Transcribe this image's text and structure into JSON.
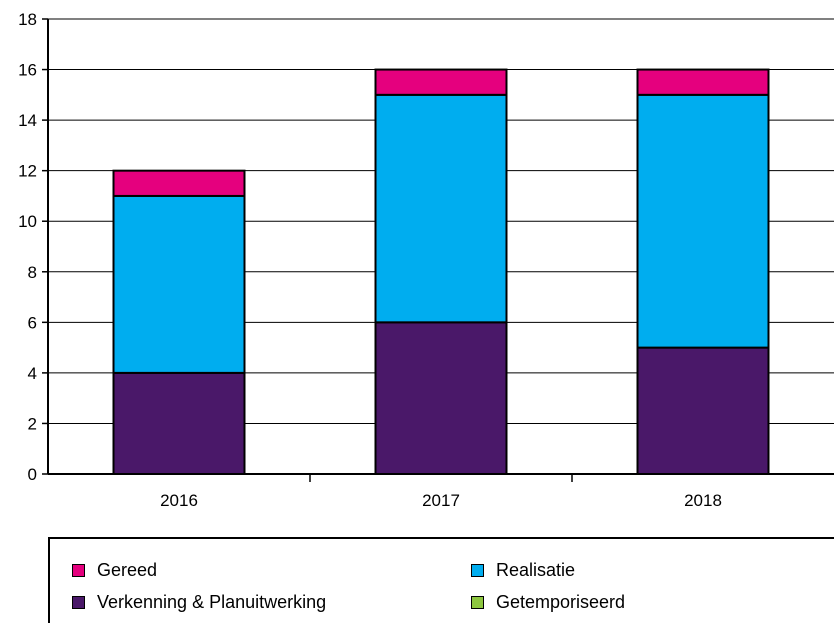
{
  "chart_data": {
    "type": "bar",
    "stacked": true,
    "categories": [
      "2016",
      "2017",
      "2018"
    ],
    "series": [
      {
        "name": "Verkenning & Planuitwerking",
        "color": "#4a1869",
        "values": [
          4,
          6,
          5
        ]
      },
      {
        "name": "Realisatie",
        "color": "#00adef",
        "values": [
          7,
          9,
          10
        ]
      },
      {
        "name": "Gereed",
        "color": "#e5007e",
        "values": [
          1,
          1,
          1
        ]
      },
      {
        "name": "Getemporiseerd",
        "color": "#8dc63f",
        "values": [
          0,
          0,
          0
        ]
      }
    ],
    "ylim": [
      0,
      18
    ],
    "yticks": [
      "0",
      "2",
      "4",
      "6",
      "8",
      "10",
      "12",
      "14",
      "16",
      "18"
    ],
    "grid": true,
    "legend_position": "bottom"
  },
  "legend": {
    "items": [
      {
        "label": "Gereed",
        "color": "#e5007e"
      },
      {
        "label": "Realisatie",
        "color": "#00adef"
      },
      {
        "label": "Verkenning & Planuitwerking",
        "color": "#4a1869"
      },
      {
        "label": "Getemporiseerd",
        "color": "#8dc63f"
      }
    ]
  }
}
